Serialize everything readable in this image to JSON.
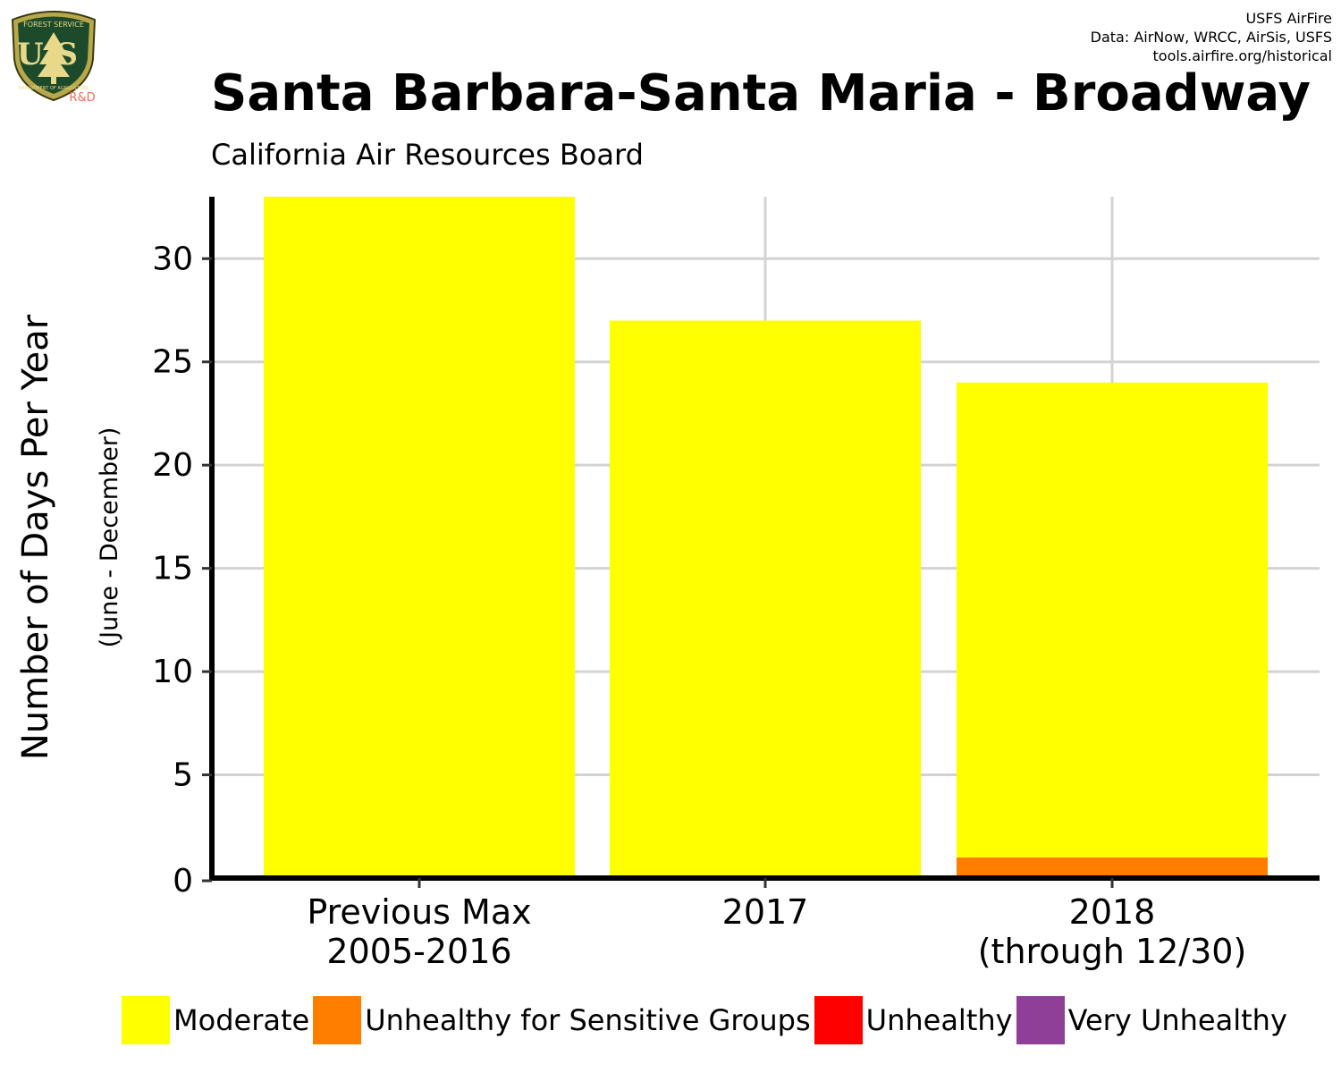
{
  "logo": {
    "top_text": "FOREST SERVICE",
    "letters": "US",
    "bottom_text": "DEPARTMENT OF AGRICULTURE",
    "badge": "R&D"
  },
  "credits": {
    "line1": "USFS AirFire",
    "line2": "Data: AirNow, WRCC, AirSis, USFS",
    "line3": "tools.airfire.org/historical"
  },
  "header": {
    "title": "Santa Barbara-Santa Maria - Broadway",
    "subtitle": "California Air Resources Board"
  },
  "chart_data": {
    "type": "bar",
    "stacked": true,
    "ylabel": "Number of Days Per Year",
    "ylabel_sub": "(June - December)",
    "xlabel": "",
    "ylim": [
      0,
      33
    ],
    "yticks": [
      0,
      5,
      10,
      15,
      20,
      25,
      30
    ],
    "categories": [
      [
        "Previous Max",
        "2005-2016"
      ],
      [
        "2017"
      ],
      [
        "2018",
        "(through 12/30)"
      ]
    ],
    "series": [
      {
        "name": "Moderate",
        "color": "#ffff00",
        "values": [
          33,
          27,
          23
        ]
      },
      {
        "name": "Unhealthy for Sensitive Groups",
        "color": "#ff7e00",
        "values": [
          0,
          0,
          1
        ]
      },
      {
        "name": "Unhealthy",
        "color": "#ff0000",
        "values": [
          0,
          0,
          0
        ]
      },
      {
        "name": "Very Unhealthy",
        "color": "#8f3f97",
        "values": [
          0,
          0,
          0
        ]
      }
    ],
    "grid": true,
    "legend": "bottom"
  }
}
